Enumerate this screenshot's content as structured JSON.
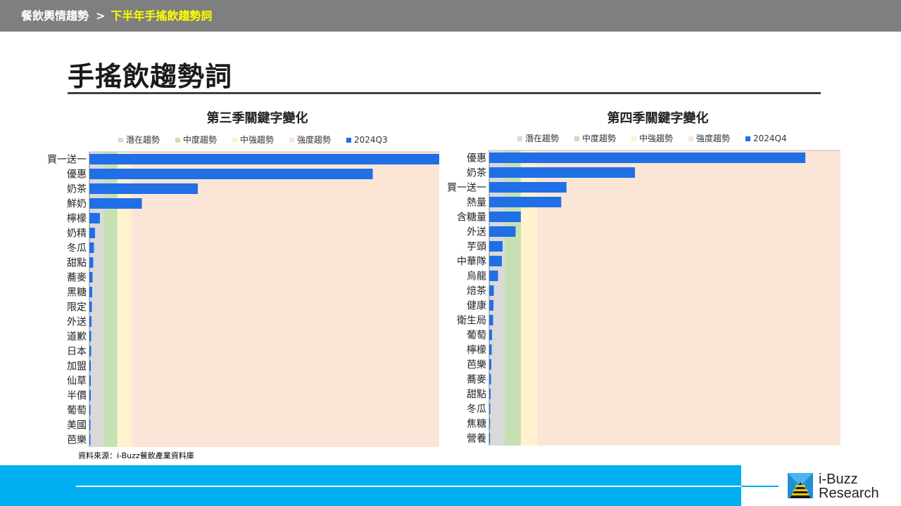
{
  "header": {
    "breadcrumb_root": "餐飲輿情趨勢",
    "breadcrumb_sep": ">",
    "breadcrumb_current": "下半年手搖飲趨勢詞"
  },
  "page_title": "手搖飲趨勢詞",
  "source_note": "資料來源：i-Buzz餐飲產業資料庫",
  "brand": {
    "line1": "i-Buzz",
    "line2": "Research"
  },
  "colors": {
    "bar": "#1f6fe6",
    "zone_latent": "#d9d9d9",
    "zone_moderate": "#c6e0b4",
    "zone_medium_strong": "#fff2cc",
    "zone_strong": "#fbe5d6",
    "header_bg": "#7f7f7f",
    "footer_bg": "#00b0f0",
    "breadcrumb_current": "#ffff00"
  },
  "chart_data": [
    {
      "type": "bar",
      "orientation": "horizontal",
      "title": "第三季關鍵字變化",
      "legend": [
        "潛在趨勢",
        "中度趨勢",
        "中強趨勢",
        "強度趨勢",
        "2024Q3"
      ],
      "legend_position": "top",
      "zones": [
        4,
        8,
        12,
        100
      ],
      "xlim": [
        0,
        100
      ],
      "categories": [
        "買一送一",
        "優惠",
        "奶茶",
        "鮮奶",
        "檸檬",
        "奶精",
        "冬瓜",
        "甜點",
        "蕎麥",
        "黑糖",
        "限定",
        "外送",
        "道歉",
        "日本",
        "加盟",
        "仙草",
        "半價",
        "葡萄",
        "美國",
        "芭樂"
      ],
      "series": [
        {
          "name": "2024Q3",
          "values": [
            100,
            81,
            31,
            15,
            3,
            1.6,
            1.3,
            1.1,
            0.9,
            0.8,
            0.7,
            0.6,
            0.5,
            0.5,
            0.4,
            0.4,
            0.4,
            0.3,
            0.3,
            0.3
          ]
        }
      ]
    },
    {
      "type": "bar",
      "orientation": "horizontal",
      "title": "第四季關鍵字變化",
      "legend": [
        "潛在趨勢",
        "中度趨勢",
        "中強趨勢",
        "強度趨勢",
        "2024Q4"
      ],
      "legend_position": "top",
      "zones": [
        4.4,
        9,
        13.6,
        100
      ],
      "xlim": [
        0,
        100
      ],
      "categories": [
        "優惠",
        "奶茶",
        "買一送一",
        "熱量",
        "含糖量",
        "外送",
        "芋頭",
        "中華隊",
        "烏龍",
        "焙茶",
        "健康",
        "衛生局",
        "葡萄",
        "檸檬",
        "芭樂",
        "蕎麥",
        "甜點",
        "冬瓜",
        "焦糖",
        "營養"
      ],
      "series": [
        {
          "name": "2024Q4",
          "values": [
            90,
            41.5,
            22,
            20.5,
            9,
            7.5,
            3.8,
            3.6,
            2.5,
            1.3,
            1.2,
            1.1,
            0.8,
            0.7,
            0.6,
            0.5,
            0.4,
            0.3,
            0.2,
            0.2
          ]
        }
      ]
    }
  ]
}
